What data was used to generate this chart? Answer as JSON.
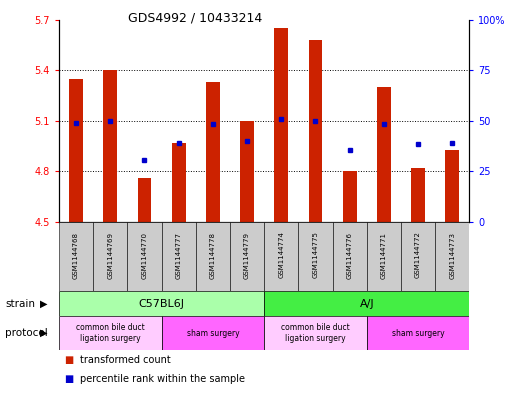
{
  "title": "GDS4992 / 10433214",
  "samples": [
    "GSM1144768",
    "GSM1144769",
    "GSM1144770",
    "GSM1144777",
    "GSM1144778",
    "GSM1144779",
    "GSM1144774",
    "GSM1144775",
    "GSM1144776",
    "GSM1144771",
    "GSM1144772",
    "GSM1144773"
  ],
  "bar_values": [
    5.35,
    5.4,
    4.76,
    4.97,
    5.33,
    5.1,
    5.65,
    5.58,
    4.8,
    5.3,
    4.82,
    4.93
  ],
  "bar_base": 4.5,
  "blue_dot_values": [
    5.09,
    5.1,
    4.87,
    4.97,
    5.08,
    4.98,
    5.11,
    5.1,
    4.93,
    5.08,
    4.96,
    4.97
  ],
  "ylim_left": [
    4.5,
    5.7
  ],
  "ylim_right": [
    0,
    100
  ],
  "yticks_left": [
    4.5,
    4.8,
    5.1,
    5.4,
    5.7
  ],
  "yticks_right": [
    0,
    25,
    50,
    75,
    100
  ],
  "ytick_labels_left": [
    "4.5",
    "4.8",
    "5.1",
    "5.4",
    "5.7"
  ],
  "ytick_labels_right": [
    "0",
    "25",
    "50",
    "75",
    "100%"
  ],
  "bar_color": "#cc2200",
  "dot_color": "#0000cc",
  "strain_groups": [
    {
      "label": "C57BL6J",
      "start": 0,
      "end": 6,
      "color": "#aaffaa"
    },
    {
      "label": "A/J",
      "start": 6,
      "end": 12,
      "color": "#44ee44"
    }
  ],
  "protocol_groups": [
    {
      "label": "common bile duct\nligation surgery",
      "start": 0,
      "end": 3,
      "color": "#ffccff"
    },
    {
      "label": "sham surgery",
      "start": 3,
      "end": 6,
      "color": "#ff66ff"
    },
    {
      "label": "common bile duct\nligation surgery",
      "start": 6,
      "end": 9,
      "color": "#ffccff"
    },
    {
      "label": "sham surgery",
      "start": 9,
      "end": 12,
      "color": "#ff66ff"
    }
  ],
  "legend_items": [
    {
      "label": "transformed count",
      "color": "#cc2200"
    },
    {
      "label": "percentile rank within the sample",
      "color": "#0000cc"
    }
  ],
  "bg_color": "#ffffff",
  "sample_bg_color": "#cccccc",
  "bar_width": 0.4
}
